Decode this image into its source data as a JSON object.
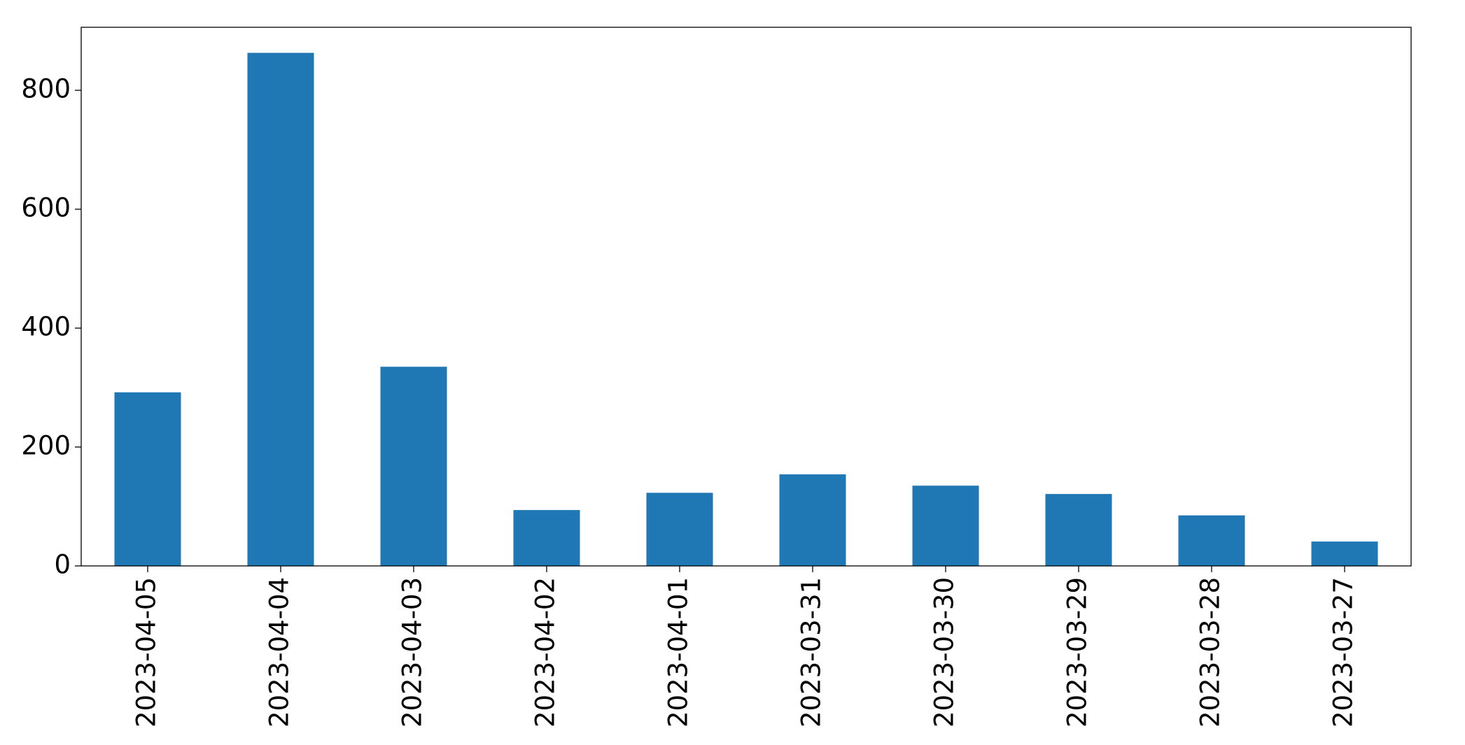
{
  "chart_data": {
    "type": "bar",
    "categories": [
      "2023-04-05",
      "2023-04-04",
      "2023-04-03",
      "2023-04-02",
      "2023-04-01",
      "2023-03-31",
      "2023-03-30",
      "2023-03-29",
      "2023-03-28",
      "2023-03-27"
    ],
    "values": [
      292,
      863,
      335,
      94,
      123,
      154,
      135,
      121,
      85,
      41
    ],
    "color": "#1f77b4",
    "ylim": [
      0,
      906
    ],
    "yticks": [
      0,
      200,
      400,
      600,
      800
    ],
    "grid": false
  }
}
